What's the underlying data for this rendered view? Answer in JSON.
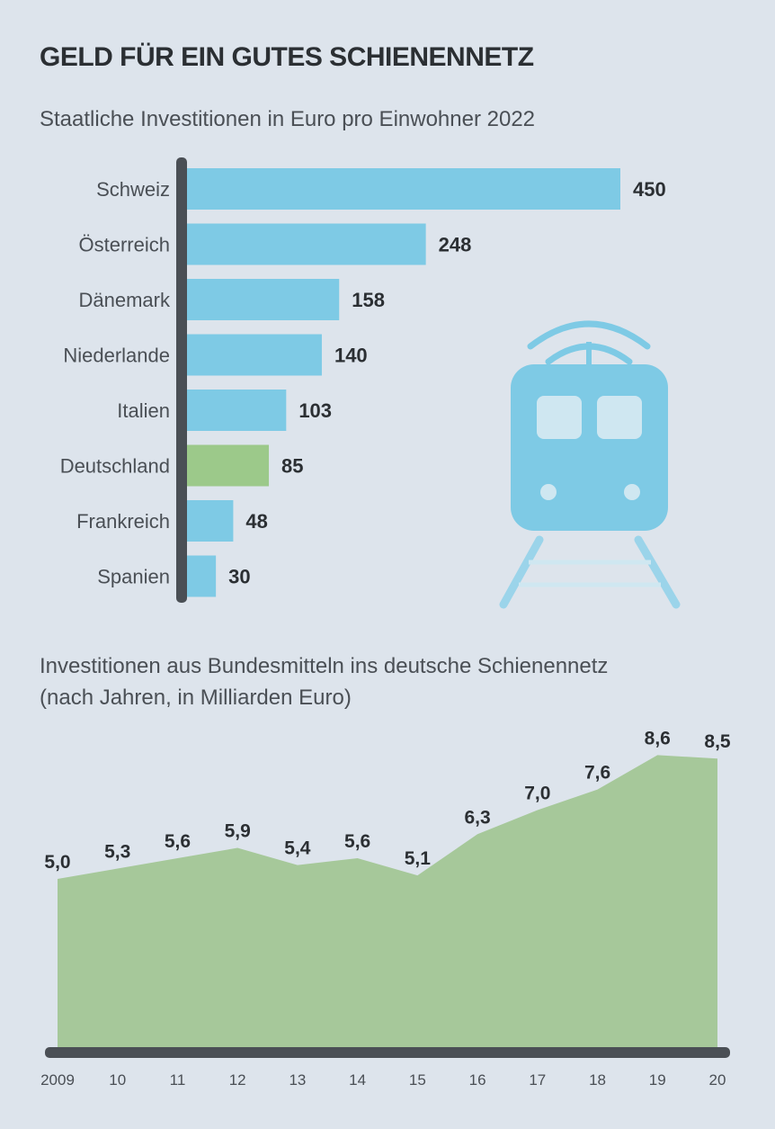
{
  "title": "GELD FÜR EIN GUTES SCHIENENNETZ",
  "source": "",
  "colors": {
    "background": "#dde4ec",
    "bar_default": "#7ecae5",
    "bar_highlight": "#9cc98a",
    "area_fill": "#a6c89a",
    "axis": "#4a4f55",
    "train_icon": "#7ecae5",
    "text_dark": "#2b2f33"
  },
  "icon": "train-icon",
  "chart_data": [
    {
      "type": "bar",
      "orientation": "horizontal",
      "title": "Staatliche Investitionen in Euro pro Einwohner 2022",
      "categories": [
        "Schweiz",
        "Österreich",
        "Dänemark",
        "Niederlande",
        "Italien",
        "Deutschland",
        "Frankreich",
        "Spanien"
      ],
      "values": [
        450,
        248,
        158,
        140,
        103,
        85,
        48,
        30
      ],
      "highlight": "Deutschland",
      "xlim": [
        0,
        450
      ],
      "grid": false
    },
    {
      "type": "area",
      "title": "Investitionen aus Bundesmitteln ins deutsche Schienennetz",
      "subtitle": "(nach Jahren, in Milliarden Euro)",
      "x": [
        "2009",
        "10",
        "11",
        "12",
        "13",
        "14",
        "15",
        "16",
        "17",
        "18",
        "19",
        "20"
      ],
      "values": [
        5.0,
        5.3,
        5.6,
        5.9,
        5.4,
        5.6,
        5.1,
        6.3,
        7.0,
        7.6,
        8.6,
        8.5
      ],
      "ylim": [
        0,
        9.5
      ],
      "grid": false
    }
  ]
}
